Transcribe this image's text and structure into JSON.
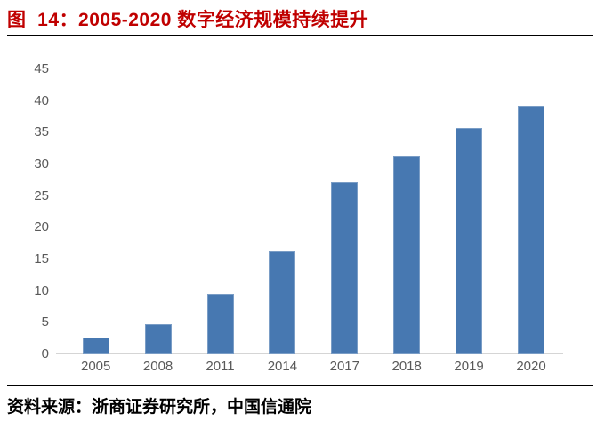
{
  "figure": {
    "title": "图  14：2005-2020 数字经济规模持续提升",
    "source_note": "资料来源：浙商证券研究所，中国信通院"
  },
  "colors": {
    "bar": "#4778B1",
    "title_red": "#C00000",
    "axis_label_gray": "#595959",
    "axis_line_gray": "#D5D5D5",
    "rule_black": "#000000",
    "background": "#FFFFFF"
  },
  "chart_data": {
    "type": "bar",
    "categories": [
      "2005",
      "2008",
      "2011",
      "2014",
      "2017",
      "2018",
      "2019",
      "2020"
    ],
    "values": [
      2.6,
      4.8,
      9.5,
      16.2,
      27.2,
      31.3,
      35.8,
      39.2
    ],
    "title": "",
    "xlabel": "",
    "ylabel": "",
    "ylim": [
      0,
      45
    ],
    "yticks": [
      0,
      5,
      10,
      15,
      20,
      25,
      30,
      35,
      40,
      45
    ],
    "grid": false,
    "legend": "none",
    "bar_color": "#4778B1"
  }
}
